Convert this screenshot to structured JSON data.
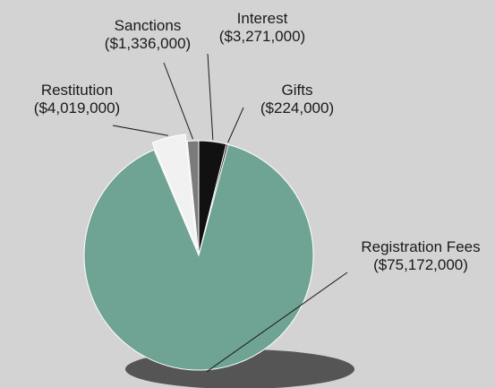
{
  "chart_data": {
    "type": "pie",
    "categories": [
      "Interest",
      "Gifts",
      "Registration Fees",
      "Restitution",
      "Sanctions"
    ],
    "values": [
      3271000,
      224000,
      75172000,
      4019000,
      1336000
    ],
    "value_labels": [
      "($3,271,000)",
      "($224,000)",
      "($75,172,000)",
      "($4,019,000)",
      "($1,336,000)"
    ],
    "colors": [
      "#111111",
      "#111111",
      "#6fa393",
      "#f1f1f1",
      "#7b7b7b"
    ]
  }
}
